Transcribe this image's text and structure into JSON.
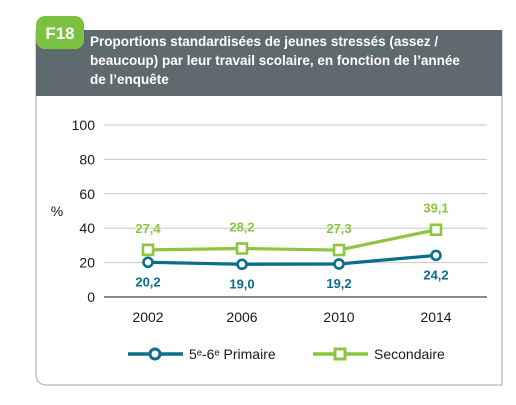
{
  "header": {
    "badge": "F18",
    "title_lines": [
      "Proportions standardisées de jeunes stressés (assez /",
      "beaucoup) par leur travail scolaire, en fonction de l’année",
      "de l’enquête"
    ]
  },
  "colors": {
    "header_bg": "#5e6a6d",
    "badge_bg": "#7cc242",
    "secondaire": "#8cc63f",
    "primaire": "#0b6e8c",
    "grid": "#c7c7c7",
    "frame": "#b8b8b8",
    "text": "#1a1a1a"
  },
  "chart_data": {
    "type": "line",
    "ylabel": "%",
    "ylim": [
      0,
      100
    ],
    "yticks": [
      0,
      20,
      40,
      60,
      80,
      100
    ],
    "grid": true,
    "legend_position": "bottom",
    "categories": [
      "2002",
      "2006",
      "2010",
      "2014"
    ],
    "series": [
      {
        "name": "5ᵉ-6ᵉ Primaire",
        "values": [
          20.2,
          19.0,
          19.2,
          24.2
        ],
        "labels": [
          "20,2",
          "19,0",
          "19,2",
          "24,2"
        ],
        "color": "#0b6e8c",
        "marker": "circle"
      },
      {
        "name": "Secondaire",
        "values": [
          27.4,
          28.2,
          27.3,
          39.1
        ],
        "labels": [
          "27,4",
          "28,2",
          "27,3",
          "39,1"
        ],
        "color": "#8cc63f",
        "marker": "square"
      }
    ]
  }
}
